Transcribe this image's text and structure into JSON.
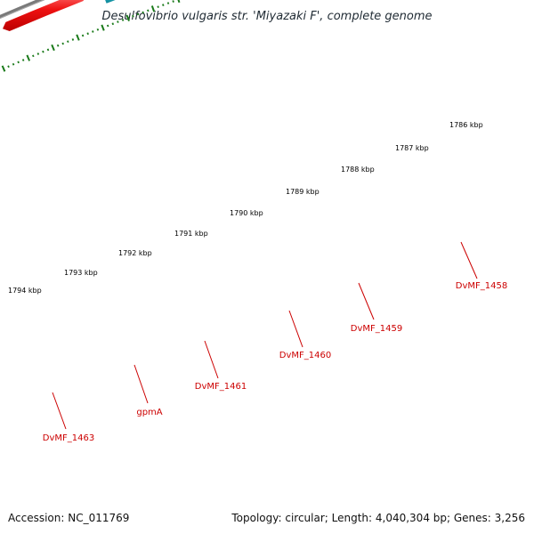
{
  "title": "Desulfovibrio vulgaris str. 'Miyazaki F', complete genome",
  "footer": {
    "accession": "Accession: NC_011769",
    "summary": "Topology: circular; Length: 4,040,304 bp; Genes: 3,256"
  },
  "scale_labels": [
    "1786 kbp",
    "1787 kbp",
    "1788 kbp",
    "1789 kbp",
    "1790 kbp",
    "1791 kbp",
    "1792 kbp",
    "1793 kbp",
    "1794 kbp"
  ],
  "genes": [
    {
      "label": "DvMF_1458",
      "track": "cds",
      "color": "#44bb44"
    },
    {
      "label": "DvMF_1459",
      "track": "pseudo",
      "color": "#b8b8b8"
    },
    {
      "label": "DvMF_1460",
      "track": "cds",
      "color": "#44bb44"
    },
    {
      "label": "DvMF_1461",
      "track": "cds",
      "color": "#44bb44"
    },
    {
      "label": "gpmA",
      "track": "rna",
      "color": "#33bbcc"
    },
    {
      "label": "DvMF_1463",
      "track": "gene",
      "color": "#ee2222"
    }
  ],
  "colors": {
    "backbone": "#808080",
    "gene": "#ee2222",
    "cds": "#44bb44",
    "rna": "#33bbcc",
    "pseudo": "#b8b8b8",
    "ticks": "#1a7a1a",
    "gene_label": "#cc0000"
  }
}
